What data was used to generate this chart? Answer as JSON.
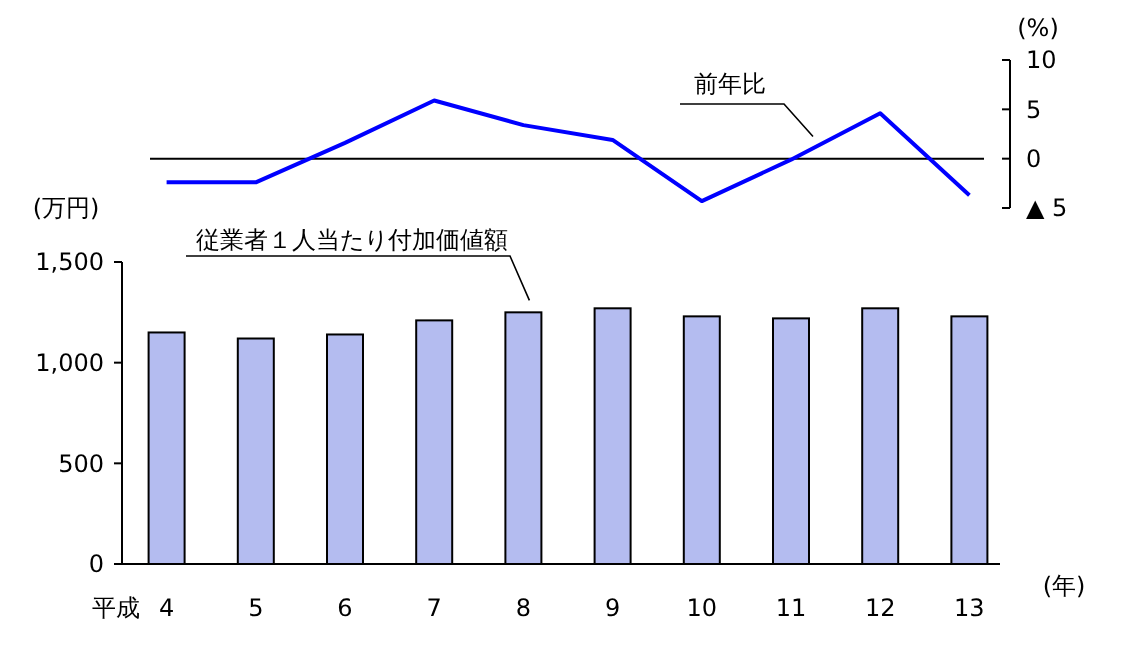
{
  "chart_data": [
    {
      "type": "line",
      "categories": [
        null,
        null,
        null,
        null,
        null,
        null,
        null,
        null,
        null,
        null
      ],
      "series": [
        {
          "name": "前年比",
          "color": "#0000ff",
          "values": [
            -2.4,
            -2.4,
            1.6,
            5.9,
            3.4,
            1.9,
            -4.3,
            -0.1,
            4.6,
            -3.7
          ]
        }
      ],
      "ylabel": "(%)",
      "ylim": [
        -5,
        10
      ],
      "yticks": [
        {
          "value": -5,
          "label": "▲ 5"
        },
        0,
        5,
        10
      ],
      "tick_labels": "y",
      "ref_lines": [
        {
          "axis": "y",
          "value": 0,
          "color": "#000000"
        }
      ],
      "legend": false,
      "marker": "none",
      "line_style": "solid"
    },
    {
      "type": "bar",
      "categories": [
        "4",
        "5",
        "6",
        "7",
        "8",
        "9",
        "10",
        "11",
        "12",
        "13"
      ],
      "series": [
        {
          "name": "従業者１人当たり付加価値額",
          "color": "#b4bcf0",
          "values": [
            1150,
            1120,
            1140,
            1210,
            1250,
            1270,
            1230,
            1220,
            1270,
            1230
          ]
        }
      ],
      "ylabel": "(万円)",
      "xlabel": "(年)",
      "annotations": [
        "平成"
      ],
      "ylim": [
        0,
        1500
      ],
      "yticks": [
        0,
        500,
        {
          "value": 1000,
          "label": "1,000"
        },
        {
          "value": 1500,
          "label": "1,500"
        }
      ],
      "grid": false,
      "legend": false
    }
  ]
}
